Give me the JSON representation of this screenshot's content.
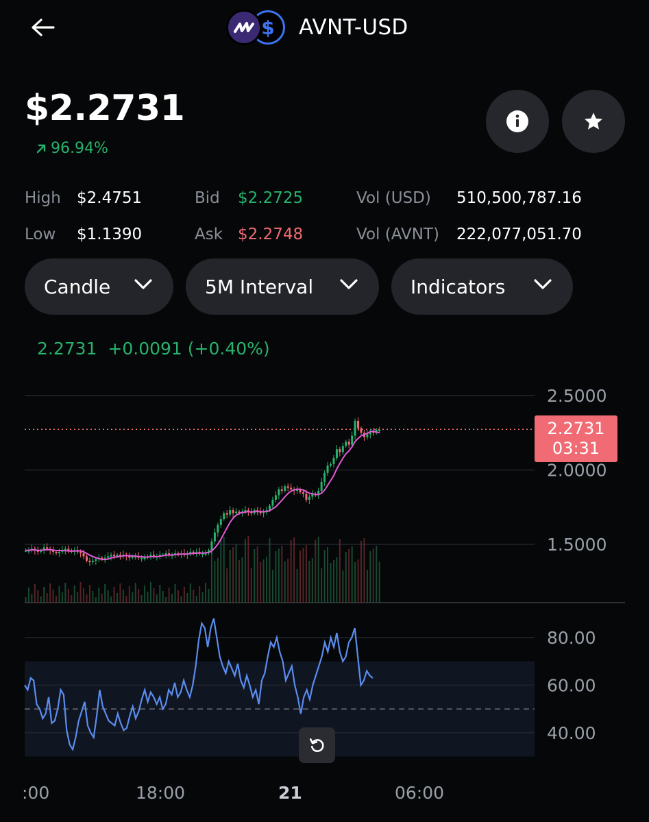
{
  "header": {
    "title": "AVNT-USD",
    "back_icon": "arrow-left-icon",
    "base_logo_icon": "avnt-logo-icon",
    "quote_logo_glyph": "$"
  },
  "quote": {
    "price": "$2.2731",
    "change_pct": "96.94%",
    "change_icon": "arrow-up-right-icon",
    "change_color": "#27b26d"
  },
  "actions": {
    "info_icon": "info-icon",
    "favorite_icon": "star-icon"
  },
  "stats": {
    "high_label": "High",
    "high_value": "$2.4751",
    "low_label": "Low",
    "low_value": "$1.1390",
    "bid_label": "Bid",
    "bid_value": "$2.2725",
    "bid_color": "#27b26d",
    "ask_label": "Ask",
    "ask_value": "$2.2748",
    "ask_color": "#f06b74",
    "vol_usd_label": "Vol (USD)",
    "vol_usd_value": "510,500,787.16",
    "vol_base_label": "Vol (AVNT)",
    "vol_base_value": "222,077,051.70"
  },
  "controls": {
    "chart_type": "Candle",
    "interval": "5M Interval",
    "indicators": "Indicators"
  },
  "ohlc_readout": {
    "last": "2.2731",
    "change": "+0.0091",
    "change_pct": "(+0.40%)"
  },
  "price_tag": {
    "price": "2.2731",
    "countdown": "03:31",
    "color": "#f06b74"
  },
  "reset_icon": "rotate-ccw-icon",
  "chart_data": [
    {
      "type": "candlestick",
      "y_ticks": [
        "2.5000",
        "2.0000",
        "1.5000"
      ],
      "ylim": [
        1.1,
        2.5
      ],
      "x_ticks": [
        ":00",
        "18:00",
        "21",
        "06:00"
      ],
      "current_price": 2.2731,
      "candle_color_up": "#27b26d",
      "candle_color_down": "#f06b74",
      "ma_color": "#e05bd6",
      "close": [
        1.46,
        1.46,
        1.47,
        1.46,
        1.45,
        1.46,
        1.48,
        1.47,
        1.46,
        1.45,
        1.44,
        1.45,
        1.46,
        1.47,
        1.46,
        1.45,
        1.46,
        1.45,
        1.44,
        1.42,
        1.39,
        1.38,
        1.39,
        1.4,
        1.41,
        1.4,
        1.41,
        1.42,
        1.43,
        1.42,
        1.43,
        1.42,
        1.43,
        1.42,
        1.41,
        1.42,
        1.42,
        1.41,
        1.41,
        1.41,
        1.42,
        1.43,
        1.42,
        1.42,
        1.43,
        1.43,
        1.44,
        1.43,
        1.43,
        1.44,
        1.43,
        1.44,
        1.43,
        1.44,
        1.45,
        1.44,
        1.45,
        1.44,
        1.44,
        1.44,
        1.46,
        1.52,
        1.58,
        1.63,
        1.67,
        1.71,
        1.7,
        1.73,
        1.71,
        1.72,
        1.71,
        1.72,
        1.73,
        1.72,
        1.71,
        1.73,
        1.72,
        1.71,
        1.72,
        1.73,
        1.76,
        1.8,
        1.83,
        1.87,
        1.86,
        1.89,
        1.88,
        1.87,
        1.86,
        1.87,
        1.85,
        1.84,
        1.8,
        1.82,
        1.84,
        1.83,
        1.86,
        1.92,
        1.98,
        2.03,
        2.04,
        2.08,
        2.14,
        2.12,
        2.16,
        2.19,
        2.17,
        2.23,
        2.33,
        2.28,
        2.25,
        2.22,
        2.24,
        2.26,
        2.25,
        2.27,
        2.27
      ],
      "volume_bars": 117
    },
    {
      "type": "line",
      "indicator": "RSI",
      "y_ticks": [
        "80.00",
        "60.00",
        "40.00"
      ],
      "ylim": [
        30,
        90
      ],
      "band": [
        30,
        70
      ],
      "midline": 50,
      "line_color": "#5b8def",
      "values": [
        60,
        58,
        63,
        62,
        52,
        50,
        46,
        48,
        55,
        44,
        45,
        50,
        58,
        56,
        41,
        35,
        33,
        38,
        45,
        49,
        53,
        43,
        40,
        38,
        47,
        58,
        51,
        48,
        45,
        44,
        43,
        48,
        44,
        41,
        42,
        47,
        51,
        46,
        49,
        54,
        58,
        53,
        57,
        55,
        52,
        55,
        50,
        52,
        58,
        56,
        61,
        55,
        57,
        62,
        58,
        55,
        60,
        68,
        79,
        86,
        84,
        76,
        84,
        88,
        80,
        72,
        68,
        65,
        70,
        67,
        64,
        69,
        62,
        59,
        64,
        60,
        55,
        58,
        52,
        62,
        65,
        72,
        78,
        76,
        80,
        74,
        70,
        62,
        65,
        68,
        60,
        55,
        48,
        55,
        58,
        54,
        60,
        64,
        68,
        72,
        78,
        74,
        80,
        76,
        82,
        74,
        70,
        72,
        78,
        80,
        84,
        72,
        60,
        62,
        66,
        64,
        63
      ]
    }
  ]
}
